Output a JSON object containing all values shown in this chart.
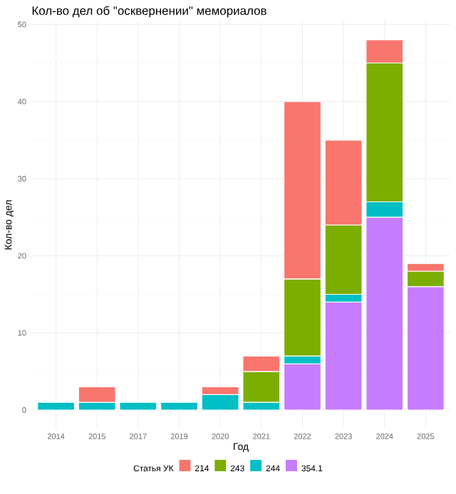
{
  "chart_data": {
    "type": "bar",
    "stacked": true,
    "title": "Кол-во дел об \"осквернении\" мемориалов",
    "xlabel": "Год",
    "ylabel": "Кол-во дел",
    "legend_title": "Статья УК",
    "legend": "bottom",
    "grid": true,
    "categories": [
      "2014",
      "2015",
      "2017",
      "2019",
      "2020",
      "2021",
      "2022",
      "2023",
      "2024",
      "2025"
    ],
    "ylim": [
      -2.4,
      50.4
    ],
    "yticks": [
      0,
      10,
      20,
      30,
      40,
      50
    ],
    "series": [
      {
        "name": "354.1",
        "color": "#c77cff",
        "values": [
          null,
          null,
          null,
          null,
          null,
          null,
          6,
          14,
          25,
          16
        ]
      },
      {
        "name": "244",
        "color": "#00bfc4",
        "values": [
          1,
          1,
          1,
          1,
          2,
          1,
          1,
          1,
          2,
          null
        ]
      },
      {
        "name": "243",
        "color": "#7cae00",
        "values": [
          null,
          null,
          null,
          null,
          null,
          4,
          10,
          9,
          18,
          2
        ]
      },
      {
        "name": "214",
        "color": "#f8766d",
        "values": [
          null,
          2,
          null,
          null,
          1,
          2,
          23,
          11,
          3,
          1
        ]
      }
    ]
  }
}
